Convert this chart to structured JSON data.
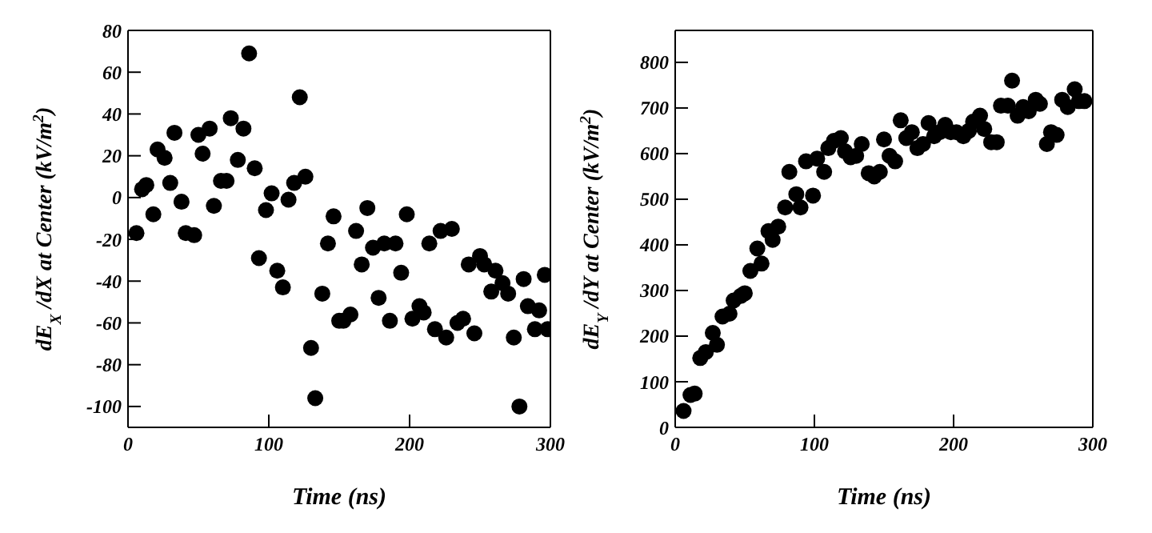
{
  "chart_data": [
    {
      "type": "scatter",
      "xlabel": "Time (ns)",
      "ylabel": "dE$_{X}$ /dX at Center (kV/m$^{2}$)",
      "xlim": [
        0,
        300
      ],
      "ylim": [
        -110,
        80
      ],
      "xticks": [
        0,
        100,
        200,
        300
      ],
      "yticks": [
        -100,
        -80,
        -60,
        -40,
        -20,
        0,
        20,
        40,
        60,
        80
      ],
      "marker": "circle",
      "x": [
        6,
        10,
        13,
        18,
        21,
        26,
        30,
        33,
        38,
        41,
        47,
        50,
        53,
        58,
        61,
        66,
        70,
        73,
        78,
        82,
        86,
        90,
        93,
        98,
        102,
        106,
        110,
        114,
        118,
        122,
        126,
        130,
        133,
        138,
        142,
        146,
        150,
        153,
        158,
        162,
        166,
        170,
        174,
        178,
        182,
        186,
        190,
        194,
        198,
        202,
        207,
        210,
        214,
        218,
        222,
        226,
        230,
        234,
        238,
        242,
        246,
        250,
        253,
        258,
        261,
        266,
        270,
        274,
        278,
        281,
        284,
        289,
        292,
        296,
        298
      ],
      "series": [
        {
          "color": "#000000",
          "values": [
            -17,
            4,
            6,
            -8,
            23,
            19,
            7,
            31,
            -2,
            -17,
            -18,
            30,
            21,
            33,
            -4,
            8,
            8,
            38,
            18,
            33,
            69,
            14,
            -29,
            -6,
            2,
            -35,
            -43,
            -1,
            7,
            48,
            10,
            -72,
            -96,
            -46,
            -22,
            -9,
            -59,
            -59,
            -56,
            -16,
            -32,
            -5,
            -24,
            -48,
            -22,
            -59,
            -22,
            -36,
            -8,
            -58,
            -52,
            -55,
            -22,
            -63,
            -16,
            -67,
            -15,
            -60,
            -58,
            -32,
            -65,
            -28,
            -32,
            -45,
            -35,
            -41,
            -46,
            -67,
            -100,
            -39,
            -52,
            -63,
            -54,
            -37,
            -63
          ]
        }
      ]
    },
    {
      "type": "scatter",
      "xlabel": "Time (ns)",
      "ylabel": "dE$_{Y}$ /dY at Center (kV/m$^{2}$)",
      "xlim": [
        0,
        300
      ],
      "ylim": [
        0,
        870
      ],
      "xticks": [
        0,
        100,
        200,
        300
      ],
      "yticks": [
        0,
        100,
        200,
        300,
        400,
        500,
        600,
        700,
        800
      ],
      "marker": "circle",
      "x": [
        6,
        11,
        14,
        18,
        22,
        27,
        30,
        34,
        39,
        42,
        47,
        50,
        54,
        59,
        62,
        67,
        70,
        74,
        79,
        82,
        87,
        90,
        94,
        99,
        102,
        107,
        110,
        114,
        119,
        122,
        126,
        130,
        134,
        139,
        143,
        147,
        150,
        154,
        158,
        162,
        166,
        170,
        174,
        178,
        182,
        186,
        190,
        194,
        198,
        202,
        207,
        211,
        214,
        219,
        222,
        227,
        231,
        234,
        239,
        242,
        246,
        250,
        254,
        259,
        262,
        267,
        270,
        274,
        278,
        282,
        287,
        290,
        294
      ],
      "series": [
        {
          "color": "#000000",
          "values": [
            36,
            71,
            74,
            152,
            165,
            207,
            181,
            243,
            249,
            278,
            288,
            294,
            343,
            392,
            359,
            430,
            411,
            440,
            482,
            560,
            511,
            482,
            583,
            508,
            589,
            560,
            612,
            628,
            634,
            605,
            592,
            595,
            621,
            557,
            550,
            560,
            631,
            595,
            583,
            673,
            634,
            647,
            612,
            621,
            667,
            638,
            647,
            663,
            647,
            647,
            638,
            650,
            670,
            683,
            654,
            625,
            625,
            705,
            705,
            760,
            683,
            702,
            693,
            718,
            709,
            621,
            647,
            641,
            718,
            702,
            741,
            715,
            715
          ]
        }
      ]
    }
  ]
}
